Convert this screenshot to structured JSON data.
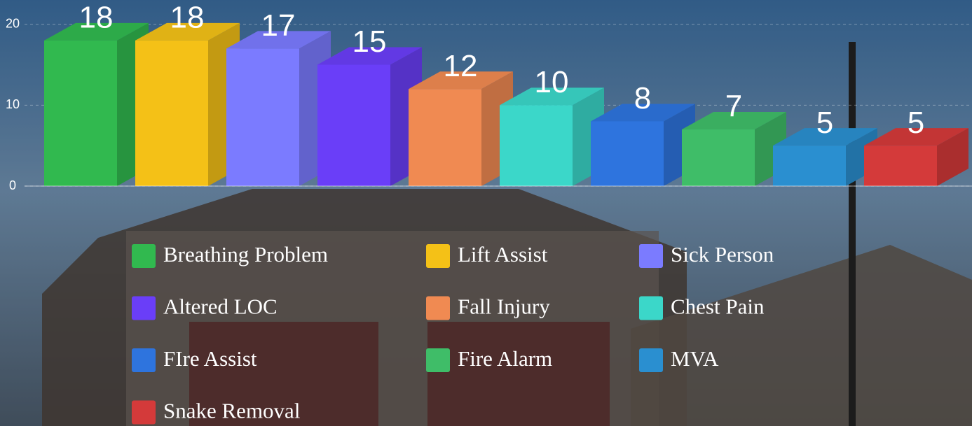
{
  "chart_data": {
    "type": "bar",
    "categories": [
      "Breathing Problem",
      "Lift Assist",
      "Sick Person",
      "Altered LOC",
      "Fall Injury",
      "Chest Pain",
      "FIre Assist",
      "Fire Alarm",
      "MVA",
      "Snake Removal"
    ],
    "values": [
      18,
      18,
      17,
      15,
      12,
      10,
      8,
      7,
      5,
      5
    ],
    "colors": [
      "#31b94f",
      "#f4c117",
      "#7b7bff",
      "#6a3ef8",
      "#f08a52",
      "#3bd7c9",
      "#2e74de",
      "#3fbd68",
      "#2a8fd0",
      "#d43a3a"
    ],
    "ylim": [
      0,
      23
    ],
    "yticks": [
      0,
      10,
      20
    ],
    "grid": true
  }
}
